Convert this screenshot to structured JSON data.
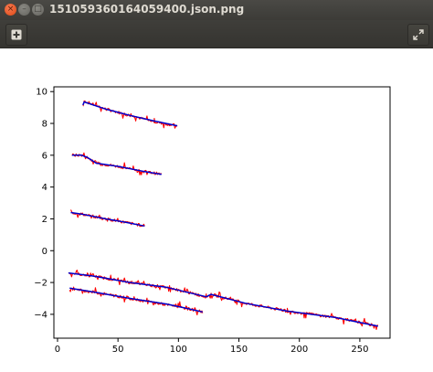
{
  "window": {
    "title": "151059360164059400.json.png",
    "close_glyph": "×",
    "minimize_glyph": "–",
    "maximize_glyph": "□"
  },
  "toolbar": {
    "new_icon": "plus-square-icon",
    "fullscreen_icon": "expand-icon"
  },
  "colors": {
    "titlebar": "#3c3b37",
    "measured": "#ff0000",
    "fitted": "#0000cc"
  },
  "chart_data": {
    "type": "line",
    "title": "",
    "xlabel": "",
    "ylabel": "",
    "xlim": [
      -3,
      275
    ],
    "ylim": [
      -5.5,
      10.3
    ],
    "xticks": [
      0,
      50,
      100,
      150,
      200,
      250
    ],
    "yticks": [
      -4,
      -2,
      0,
      2,
      4,
      6,
      8,
      10
    ],
    "xtick_labels": [
      "0",
      "50",
      "100",
      "150",
      "200",
      "250"
    ],
    "ytick_labels": [
      "−4",
      "−2",
      "0",
      "2",
      "4",
      "6",
      "8",
      "10"
    ],
    "grid": false,
    "legend": "none",
    "series": [
      {
        "color": "red",
        "style": "noisy",
        "points": [
          [
            21,
            9.1
          ],
          [
            22,
            9.4
          ],
          [
            40,
            8.9
          ],
          [
            60,
            8.5
          ],
          [
            80,
            8.1
          ],
          [
            99,
            7.85
          ]
        ]
      },
      {
        "color": "blue",
        "style": "smooth",
        "points": [
          [
            21,
            9.15
          ],
          [
            22,
            9.35
          ],
          [
            40,
            8.9
          ],
          [
            60,
            8.5
          ],
          [
            80,
            8.15
          ],
          [
            99,
            7.85
          ]
        ]
      },
      {
        "color": "red",
        "style": "noisy",
        "points": [
          [
            12,
            6.0
          ],
          [
            20,
            6.0
          ],
          [
            25,
            5.85
          ],
          [
            32,
            5.5
          ],
          [
            50,
            5.3
          ],
          [
            70,
            5.0
          ],
          [
            86,
            4.8
          ]
        ]
      },
      {
        "color": "blue",
        "style": "smooth",
        "points": [
          [
            12,
            6.0
          ],
          [
            20,
            6.0
          ],
          [
            25,
            5.85
          ],
          [
            32,
            5.5
          ],
          [
            50,
            5.3
          ],
          [
            70,
            5.0
          ],
          [
            86,
            4.8
          ]
        ]
      },
      {
        "color": "red",
        "style": "noisy",
        "points": [
          [
            11,
            2.4
          ],
          [
            20,
            2.3
          ],
          [
            40,
            2.0
          ],
          [
            55,
            1.8
          ],
          [
            72,
            1.55
          ]
        ]
      },
      {
        "color": "blue",
        "style": "smooth",
        "points": [
          [
            11,
            2.4
          ],
          [
            20,
            2.3
          ],
          [
            40,
            2.0
          ],
          [
            55,
            1.8
          ],
          [
            72,
            1.55
          ]
        ]
      },
      {
        "color": "red",
        "style": "noisy",
        "points": [
          [
            9,
            -1.4
          ],
          [
            30,
            -1.6
          ],
          [
            60,
            -2.0
          ],
          [
            90,
            -2.3
          ],
          [
            123,
            -2.9
          ],
          [
            127,
            -2.75
          ],
          [
            155,
            -3.3
          ],
          [
            190,
            -3.8
          ],
          [
            230,
            -4.2
          ],
          [
            265,
            -4.75
          ]
        ]
      },
      {
        "color": "blue",
        "style": "smooth",
        "points": [
          [
            9,
            -1.4
          ],
          [
            30,
            -1.6
          ],
          [
            60,
            -2.0
          ],
          [
            90,
            -2.3
          ],
          [
            123,
            -2.9
          ],
          [
            127,
            -2.75
          ],
          [
            155,
            -3.3
          ],
          [
            190,
            -3.8
          ],
          [
            230,
            -4.2
          ],
          [
            265,
            -4.75
          ]
        ]
      },
      {
        "color": "red",
        "style": "noisy",
        "points": [
          [
            10,
            -2.4
          ],
          [
            30,
            -2.6
          ],
          [
            60,
            -3.0
          ],
          [
            90,
            -3.4
          ],
          [
            105,
            -3.6
          ],
          [
            120,
            -3.85
          ]
        ]
      },
      {
        "color": "blue",
        "style": "smooth",
        "points": [
          [
            10,
            -2.35
          ],
          [
            30,
            -2.6
          ],
          [
            60,
            -3.0
          ],
          [
            90,
            -3.35
          ],
          [
            105,
            -3.6
          ],
          [
            120,
            -3.85
          ]
        ]
      }
    ]
  }
}
